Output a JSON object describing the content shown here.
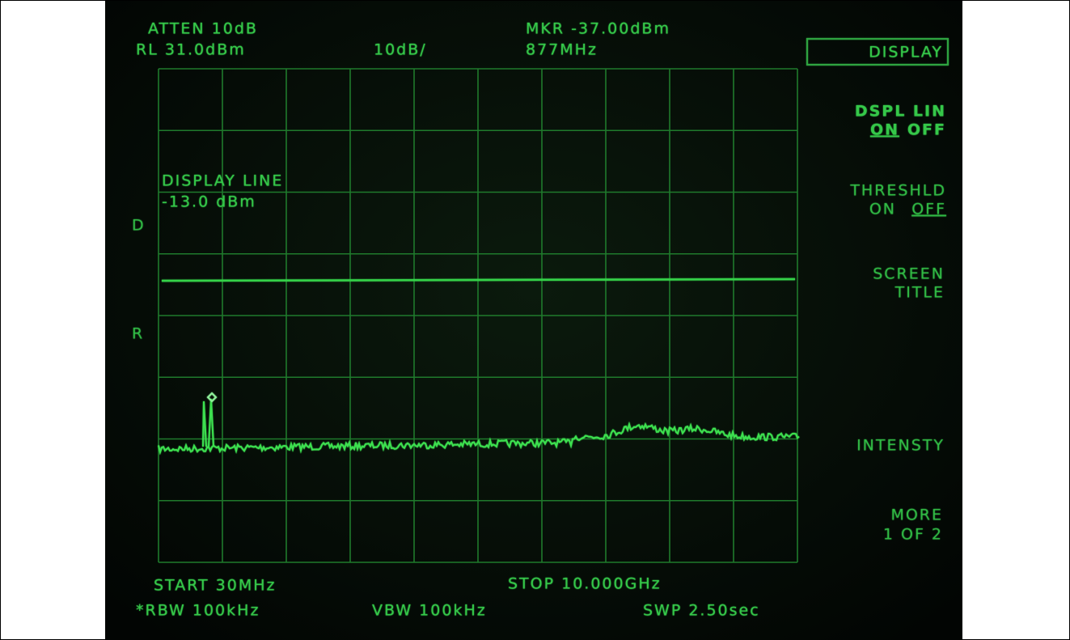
{
  "header": {
    "atten": "ATTEN 10dB",
    "ref_level": "RL 31.0dBm",
    "scale": "10dB/",
    "marker": "MKR -37.00dBm",
    "marker_freq": "877MHz"
  },
  "softkeys": {
    "menu_title": "DISPLAY",
    "dspl_lin": {
      "label": "DSPL LIN",
      "on": "ON",
      "off": "OFF"
    },
    "threshold": {
      "label": "THRESHLD",
      "on": "ON",
      "off": "OFF"
    },
    "screen_title": {
      "line1": "SCREEN",
      "line2": "TITLE"
    },
    "intensity": "INTENSTY",
    "more": {
      "line1": "MORE",
      "line2": "1 OF 2"
    }
  },
  "display_line": {
    "label": "DISPLAY LINE",
    "value": "-13.0 dBm"
  },
  "side_markers": [
    "D",
    "R"
  ],
  "footer": {
    "start": "START 30MHz",
    "stop": "STOP 10.000GHz",
    "rbw": "*RBW 100kHz",
    "vbw": "VBW 100kHz",
    "sweep": "SWP 2.50sec"
  }
}
